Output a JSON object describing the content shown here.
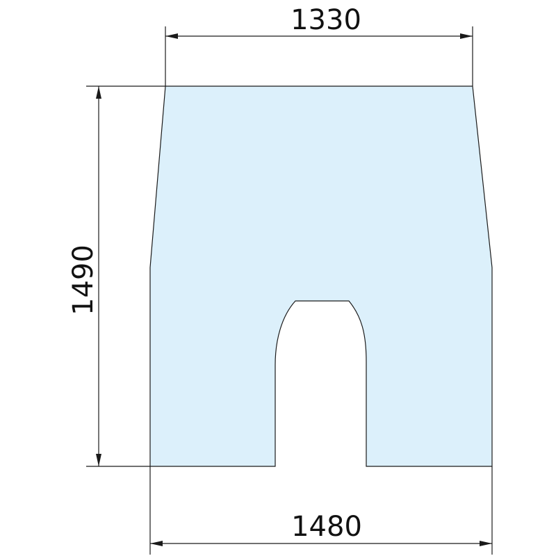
{
  "colors": {
    "glass_fill": "#dcf0fb",
    "outline": "#1a1a1a",
    "text": "#111111"
  },
  "dimensions": {
    "top_width": "1330",
    "bottom_width": "1480",
    "height": "1490"
  }
}
